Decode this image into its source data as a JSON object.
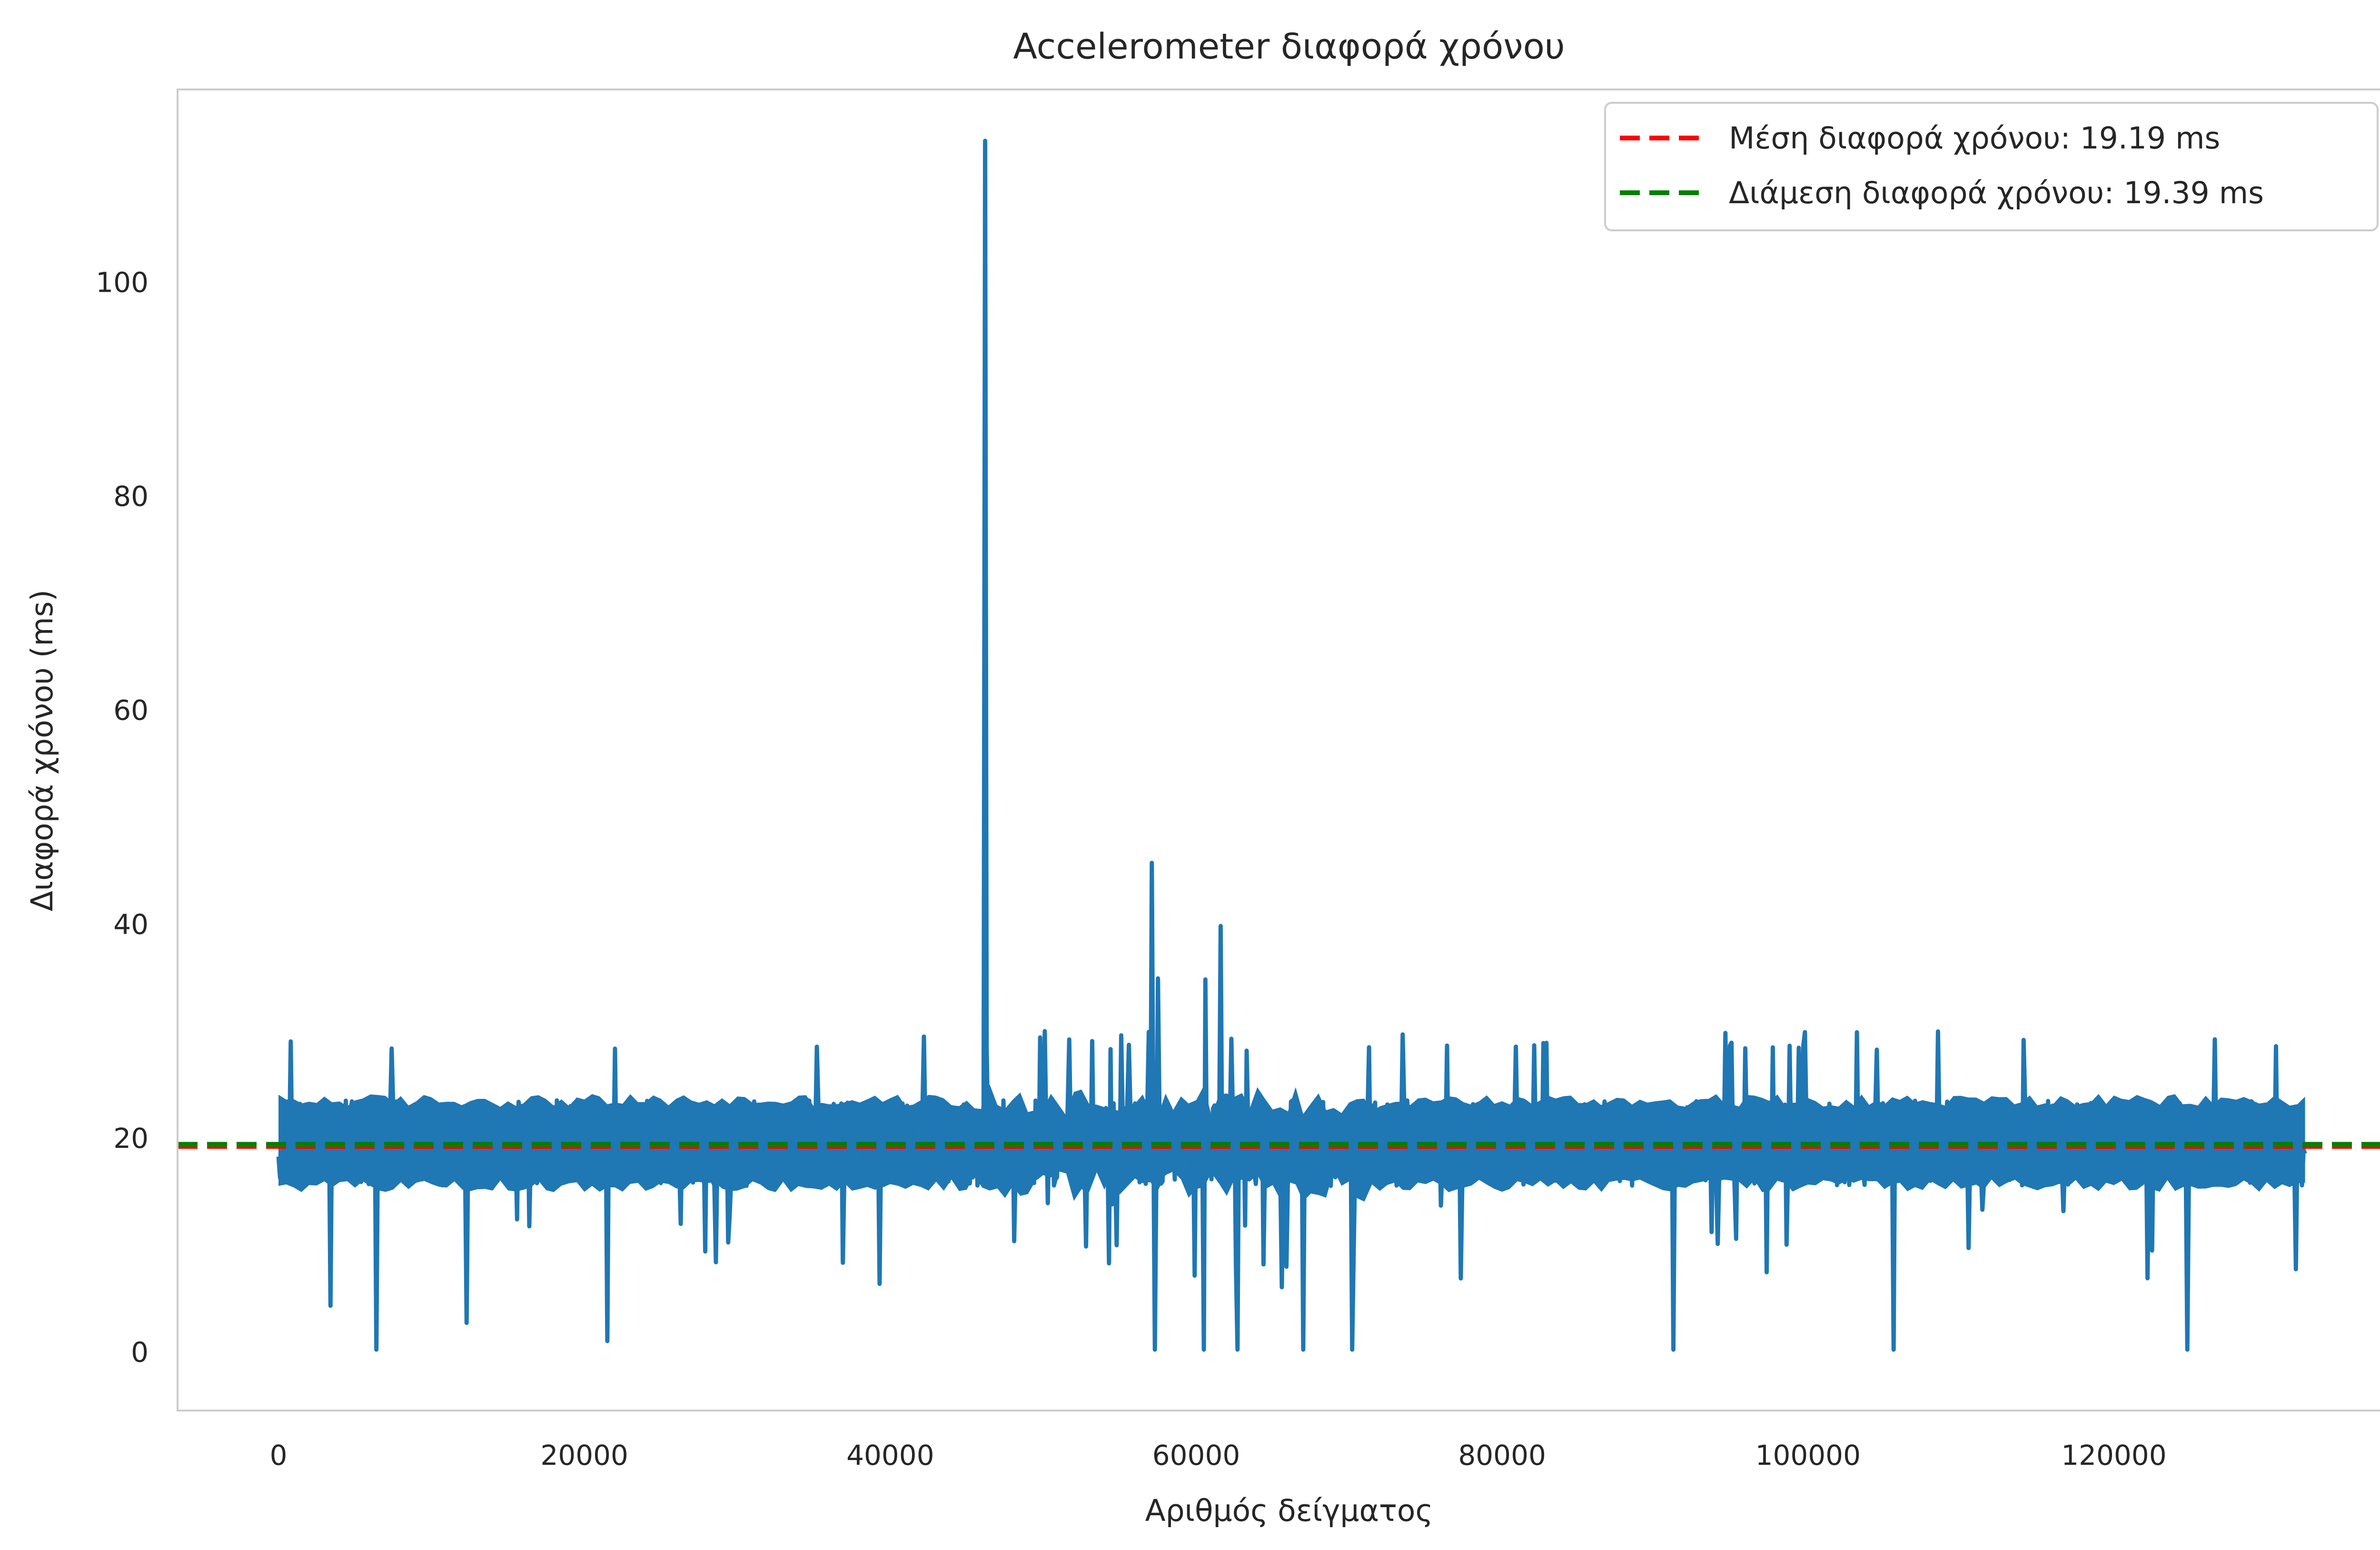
{
  "chart_data": {
    "type": "line",
    "title": "Accelerometer διαφορά χρόνου",
    "xlabel": "Αριθμός δείγματος",
    "ylabel": "Διαφορά χρόνου (ms)",
    "xlim": [
      -6600,
      138800
    ],
    "ylim": [
      -5.5,
      118
    ],
    "x_ticks": [
      0,
      20000,
      40000,
      60000,
      80000,
      100000,
      120000
    ],
    "y_ticks": [
      0,
      20,
      40,
      60,
      80,
      100
    ],
    "grid": false,
    "legend_position": "top-right",
    "series": [
      {
        "type": "line",
        "color": "#1f77b4",
        "n_samples": 132500,
        "baseline_band": [
          15.5,
          23.5
        ],
        "outliers": [
          {
            "x": 46200,
            "y": 113.2
          },
          {
            "x": 57100,
            "y": 45.7
          },
          {
            "x": 61600,
            "y": 39.8
          },
          {
            "x": 57500,
            "y": 34.9
          },
          {
            "x": 60600,
            "y": 34.8
          },
          {
            "x": 6400,
            "y": 0.2
          },
          {
            "x": 57300,
            "y": 0.2
          },
          {
            "x": 60500,
            "y": 0.2
          },
          {
            "x": 62700,
            "y": 0.2
          },
          {
            "x": 67000,
            "y": 0.2
          },
          {
            "x": 70200,
            "y": 0.2
          },
          {
            "x": 91200,
            "y": 0.2
          },
          {
            "x": 105600,
            "y": 0.2
          },
          {
            "x": 124800,
            "y": 0.2
          },
          {
            "x": 21500,
            "y": 1.0
          },
          {
            "x": 3400,
            "y": 4.3
          },
          {
            "x": 12300,
            "y": 2.7
          }
        ]
      }
    ],
    "hlines": [
      {
        "name": "Μέση διαφορά χρόνου: 19.19 ms",
        "y": 19.19,
        "color": "#ff0000",
        "style": "dashed"
      },
      {
        "name": "Διάμεση διαφορά χρόνου: 19.39 ms",
        "y": 19.39,
        "color": "#008000",
        "style": "dashed"
      }
    ]
  }
}
